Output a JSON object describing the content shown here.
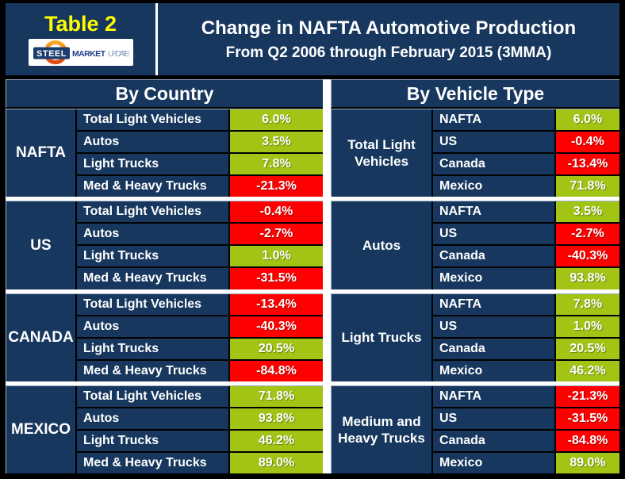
{
  "header": {
    "table_label": "Table 2",
    "title": "Change in NAFTA Automotive Production",
    "subtitle": "From Q2 2006 through February 2015 (3MMA)",
    "logo": {
      "steel": "STEEL",
      "market": "MARKET",
      "update": "UPDATE"
    }
  },
  "colors": {
    "navy": "#17375e",
    "green": "#a2c515",
    "red": "#fe0000",
    "yellow": "#ffff00",
    "logo_orange_top": "#f9a825",
    "logo_orange_bottom": "#dd4713",
    "logo_steel_box": "#1b3c6e",
    "logo_market_text": "#20418c",
    "logo_update_text": "#8ba0c0"
  },
  "left_panel": {
    "title": "By Country",
    "groups": [
      {
        "label": "NAFTA",
        "rows": [
          {
            "label": "Total Light Vehicles",
            "value": "6.0%",
            "positive": true
          },
          {
            "label": "Autos",
            "value": "3.5%",
            "positive": true
          },
          {
            "label": "Light Trucks",
            "value": "7.8%",
            "positive": true
          },
          {
            "label": "Med & Heavy Trucks",
            "value": "-21.3%",
            "positive": false
          }
        ]
      },
      {
        "label": "US",
        "rows": [
          {
            "label": "Total Light Vehicles",
            "value": "-0.4%",
            "positive": false
          },
          {
            "label": "Autos",
            "value": "-2.7%",
            "positive": false
          },
          {
            "label": "Light Trucks",
            "value": "1.0%",
            "positive": true
          },
          {
            "label": "Med & Heavy Trucks",
            "value": "-31.5%",
            "positive": false
          }
        ]
      },
      {
        "label": "CANADA",
        "rows": [
          {
            "label": "Total Light Vehicles",
            "value": "-13.4%",
            "positive": false
          },
          {
            "label": "Autos",
            "value": "-40.3%",
            "positive": false
          },
          {
            "label": "Light Trucks",
            "value": "20.5%",
            "positive": true
          },
          {
            "label": "Med & Heavy Trucks",
            "value": "-84.8%",
            "positive": false
          }
        ]
      },
      {
        "label": "MEXICO",
        "rows": [
          {
            "label": "Total Light Vehicles",
            "value": "71.8%",
            "positive": true
          },
          {
            "label": "Autos",
            "value": "93.8%",
            "positive": true
          },
          {
            "label": "Light Trucks",
            "value": "46.2%",
            "positive": true
          },
          {
            "label": "Med & Heavy Trucks",
            "value": "89.0%",
            "positive": true
          }
        ]
      }
    ]
  },
  "right_panel": {
    "title": "By Vehicle Type",
    "groups": [
      {
        "label": "Total Light Vehicles",
        "rows": [
          {
            "label": "NAFTA",
            "value": "6.0%",
            "positive": true
          },
          {
            "label": "US",
            "value": "-0.4%",
            "positive": false
          },
          {
            "label": "Canada",
            "value": "-13.4%",
            "positive": false
          },
          {
            "label": "Mexico",
            "value": "71.8%",
            "positive": true
          }
        ]
      },
      {
        "label": "Autos",
        "rows": [
          {
            "label": "NAFTA",
            "value": "3.5%",
            "positive": true
          },
          {
            "label": "US",
            "value": "-2.7%",
            "positive": false
          },
          {
            "label": "Canada",
            "value": "-40.3%",
            "positive": false
          },
          {
            "label": "Mexico",
            "value": "93.8%",
            "positive": true
          }
        ]
      },
      {
        "label": "Light Trucks",
        "rows": [
          {
            "label": "NAFTA",
            "value": "7.8%",
            "positive": true
          },
          {
            "label": "US",
            "value": "1.0%",
            "positive": true
          },
          {
            "label": "Canada",
            "value": "20.5%",
            "positive": true
          },
          {
            "label": "Mexico",
            "value": "46.2%",
            "positive": true
          }
        ]
      },
      {
        "label": "Medium and Heavy Trucks",
        "rows": [
          {
            "label": "NAFTA",
            "value": "-21.3%",
            "positive": false
          },
          {
            "label": "US",
            "value": "-31.5%",
            "positive": false
          },
          {
            "label": "Canada",
            "value": "-84.8%",
            "positive": false
          },
          {
            "label": "Mexico",
            "value": "89.0%",
            "positive": true
          }
        ]
      }
    ]
  },
  "chart_data": {
    "type": "table",
    "title": "Change in NAFTA Automotive Production",
    "subtitle": "From Q2 2006 through February 2015 (3MMA)",
    "unit": "percent change",
    "color_coding": "green = positive change, red = negative change",
    "by_country": {
      "categories": [
        "Total Light Vehicles",
        "Autos",
        "Light Trucks",
        "Med & Heavy Trucks"
      ],
      "series": [
        {
          "name": "NAFTA",
          "values": [
            6.0,
            3.5,
            7.8,
            -21.3
          ]
        },
        {
          "name": "US",
          "values": [
            -0.4,
            -2.7,
            1.0,
            -31.5
          ]
        },
        {
          "name": "CANADA",
          "values": [
            -13.4,
            -40.3,
            20.5,
            -84.8
          ]
        },
        {
          "name": "MEXICO",
          "values": [
            71.8,
            93.8,
            46.2,
            89.0
          ]
        }
      ]
    },
    "by_vehicle_type": {
      "categories": [
        "NAFTA",
        "US",
        "Canada",
        "Mexico"
      ],
      "series": [
        {
          "name": "Total Light Vehicles",
          "values": [
            6.0,
            -0.4,
            -13.4,
            71.8
          ]
        },
        {
          "name": "Autos",
          "values": [
            3.5,
            -2.7,
            -40.3,
            93.8
          ]
        },
        {
          "name": "Light Trucks",
          "values": [
            7.8,
            1.0,
            20.5,
            46.2
          ]
        },
        {
          "name": "Medium and Heavy Trucks",
          "values": [
            -21.3,
            -31.5,
            -84.8,
            89.0
          ]
        }
      ]
    }
  }
}
